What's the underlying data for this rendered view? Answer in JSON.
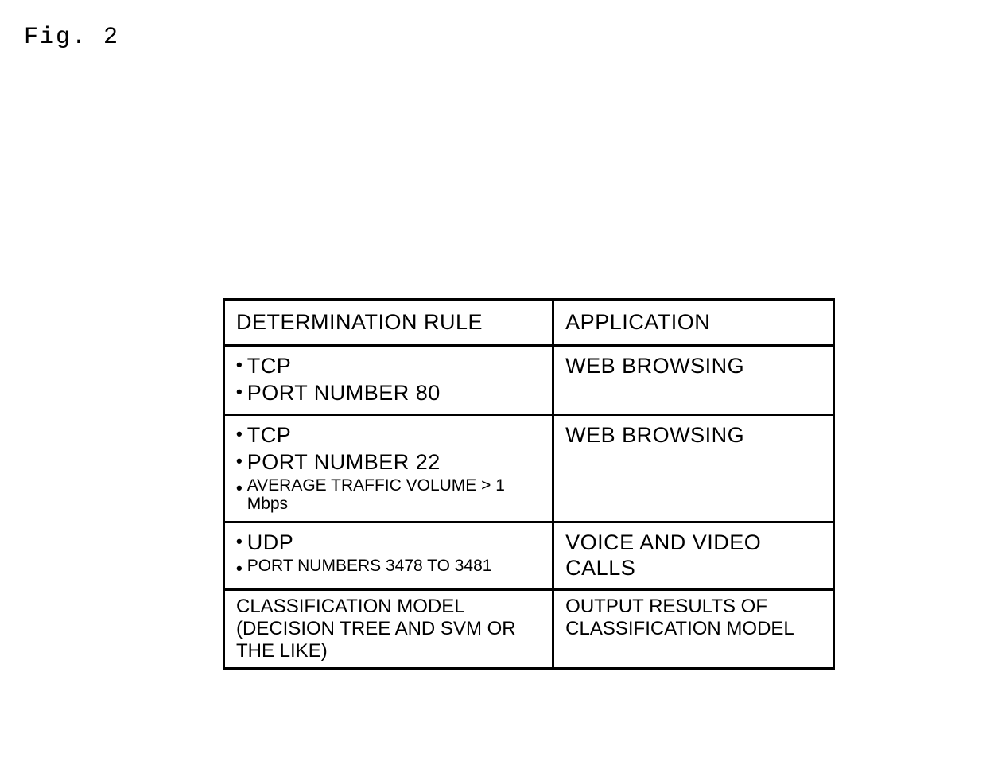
{
  "figure_label": "Fig. 2",
  "table": {
    "type": "table",
    "background_color": "#ffffff",
    "border_color": "#000000",
    "border_width": 3,
    "text_color": "#000000",
    "font_family": "Arial",
    "columns": [
      {
        "header": "DETERMINATION RULE",
        "width_percent": 54
      },
      {
        "header": "APPLICATION",
        "width_percent": 46
      }
    ],
    "rows": [
      {
        "rule_items": [
          {
            "text": "TCP",
            "size": "large"
          },
          {
            "text": "PORT NUMBER 80",
            "size": "large"
          }
        ],
        "application": "WEB BROWSING"
      },
      {
        "rule_items": [
          {
            "text": "TCP",
            "size": "large"
          },
          {
            "text": "PORT NUMBER 22",
            "size": "large"
          },
          {
            "text": "AVERAGE TRAFFIC VOLUME > 1 Mbps",
            "size": "small"
          }
        ],
        "application": "WEB BROWSING"
      },
      {
        "rule_items": [
          {
            "text": "UDP",
            "size": "large"
          },
          {
            "text": "PORT NUMBERS 3478 TO 3481",
            "size": "small"
          }
        ],
        "application": "VOICE AND VIDEO CALLS"
      },
      {
        "rule_plain": "CLASSIFICATION MODEL (DECISION TREE AND SVM OR THE LIKE)",
        "application": "OUTPUT RESULTS OF CLASSIFICATION MODEL"
      }
    ],
    "header_fontsize": 27,
    "body_fontsize_large": 27,
    "body_fontsize_small": 21,
    "model_fontsize": 24
  }
}
